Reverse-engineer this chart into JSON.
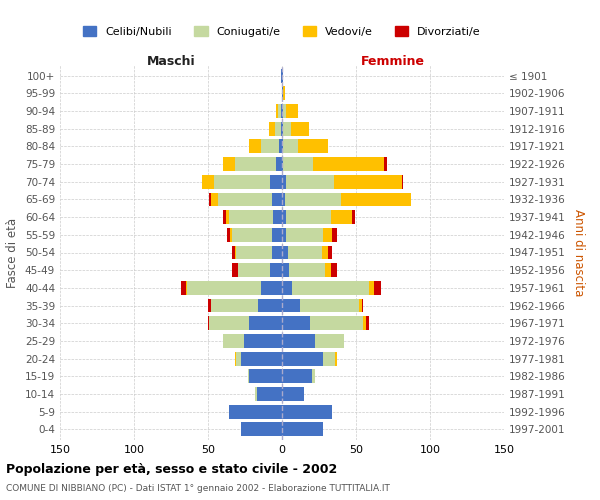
{
  "age_groups": [
    "0-4",
    "5-9",
    "10-14",
    "15-19",
    "20-24",
    "25-29",
    "30-34",
    "35-39",
    "40-44",
    "45-49",
    "50-54",
    "55-59",
    "60-64",
    "65-69",
    "70-74",
    "75-79",
    "80-84",
    "85-89",
    "90-94",
    "95-99",
    "100+"
  ],
  "birth_years": [
    "1997-2001",
    "1992-1996",
    "1987-1991",
    "1982-1986",
    "1977-1981",
    "1972-1976",
    "1967-1971",
    "1962-1966",
    "1957-1961",
    "1952-1956",
    "1947-1951",
    "1942-1946",
    "1937-1941",
    "1932-1936",
    "1927-1931",
    "1922-1926",
    "1917-1921",
    "1912-1916",
    "1907-1911",
    "1902-1906",
    "≤ 1901"
  ],
  "males": {
    "celibi": [
      28,
      36,
      17,
      22,
      28,
      26,
      22,
      16,
      14,
      8,
      7,
      7,
      6,
      7,
      8,
      4,
      2,
      1,
      1,
      0,
      1
    ],
    "coniugati": [
      0,
      0,
      1,
      1,
      3,
      14,
      27,
      32,
      50,
      22,
      24,
      27,
      30,
      36,
      38,
      28,
      12,
      4,
      2,
      0,
      0
    ],
    "vedovi": [
      0,
      0,
      0,
      0,
      1,
      0,
      0,
      0,
      1,
      0,
      1,
      1,
      2,
      5,
      8,
      8,
      8,
      4,
      1,
      0,
      0
    ],
    "divorziati": [
      0,
      0,
      0,
      0,
      0,
      0,
      1,
      2,
      3,
      4,
      2,
      2,
      2,
      1,
      0,
      0,
      0,
      0,
      0,
      0,
      0
    ]
  },
  "females": {
    "nubili": [
      28,
      34,
      15,
      20,
      28,
      22,
      19,
      12,
      7,
      5,
      4,
      3,
      3,
      2,
      3,
      1,
      1,
      1,
      1,
      1,
      1
    ],
    "coniugate": [
      0,
      0,
      0,
      2,
      8,
      20,
      36,
      40,
      52,
      24,
      23,
      25,
      30,
      38,
      32,
      20,
      10,
      5,
      2,
      0,
      0
    ],
    "vedove": [
      0,
      0,
      0,
      0,
      1,
      0,
      2,
      2,
      3,
      4,
      4,
      6,
      14,
      47,
      46,
      48,
      20,
      12,
      8,
      1,
      0
    ],
    "divorziate": [
      0,
      0,
      0,
      0,
      0,
      0,
      2,
      1,
      5,
      4,
      3,
      3,
      2,
      0,
      1,
      2,
      0,
      0,
      0,
      0,
      0
    ]
  },
  "colors": {
    "celibi": "#4472c4",
    "coniugati": "#c5d9a0",
    "vedovi": "#ffc000",
    "divorziati": "#cc0000"
  },
  "xlim": 150,
  "title": "Popolazione per età, sesso e stato civile - 2002",
  "subtitle": "COMUNE DI NIBBIANO (PC) - Dati ISTAT 1° gennaio 2002 - Elaborazione TUTTITALIA.IT",
  "xlabel_left": "Maschi",
  "xlabel_right": "Femmine",
  "ylabel_left": "Fasce di età",
  "ylabel_right": "Anni di nascita",
  "legend_labels": [
    "Celibi/Nubili",
    "Coniugati/e",
    "Vedovi/e",
    "Divorziati/e"
  ],
  "bg_color": "#ffffff",
  "grid_color": "#cccccc"
}
